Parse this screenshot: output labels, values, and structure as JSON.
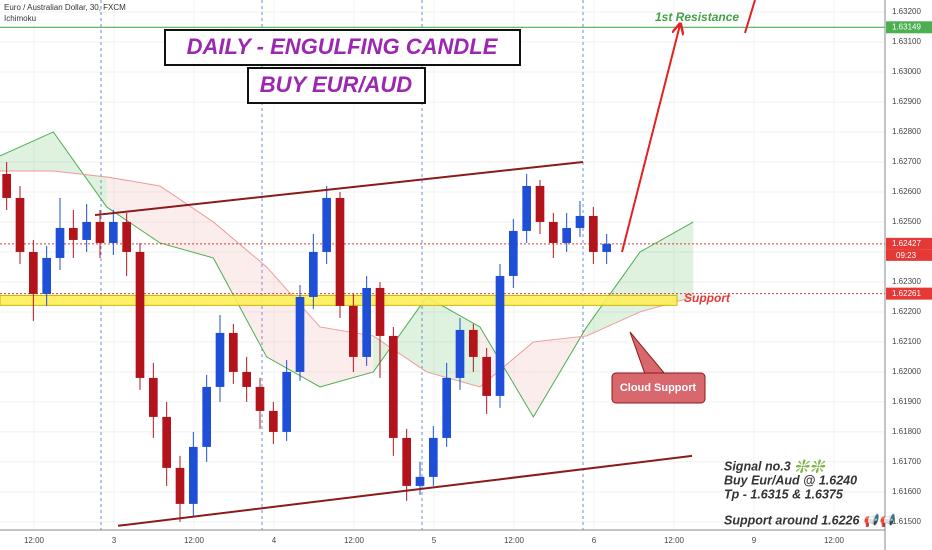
{
  "header": {
    "title": "Euro / Australian Dollar, 30, FXCM",
    "indicator": "Ichimoku"
  },
  "chart_data": {
    "type": "candlestick",
    "x": [
      1,
      3,
      5,
      7,
      9,
      11,
      13,
      15,
      17,
      19,
      21,
      23,
      25,
      27,
      29,
      31,
      33,
      35,
      37,
      39,
      41,
      43,
      45,
      47,
      49,
      51,
      53,
      55,
      57,
      59,
      61,
      63,
      65,
      67,
      69,
      71,
      73,
      75,
      77,
      79,
      81,
      83,
      85,
      87,
      89,
      91
    ],
    "open": [
      1.6266,
      1.6258,
      1.624,
      1.6226,
      1.6238,
      1.6248,
      1.6244,
      1.625,
      1.6243,
      1.625,
      1.624,
      1.6198,
      1.6185,
      1.6168,
      1.6156,
      1.6175,
      1.6195,
      1.6213,
      1.62,
      1.6195,
      1.6187,
      1.618,
      1.62,
      1.6225,
      1.624,
      1.6258,
      1.6222,
      1.6205,
      1.6228,
      1.6212,
      1.6178,
      1.6162,
      1.6165,
      1.6178,
      1.6198,
      1.6214,
      1.6205,
      1.6192,
      1.6232,
      1.6247,
      1.6262,
      1.625,
      1.6243,
      1.6248,
      1.6252,
      1.624
    ],
    "high": [
      1.627,
      1.6262,
      1.6244,
      1.6242,
      1.6258,
      1.6254,
      1.6256,
      1.6254,
      1.6254,
      1.6253,
      1.6243,
      1.6203,
      1.619,
      1.6172,
      1.618,
      1.6199,
      1.6219,
      1.6216,
      1.6205,
      1.6198,
      1.619,
      1.6204,
      1.6229,
      1.6246,
      1.6262,
      1.626,
      1.6226,
      1.6232,
      1.623,
      1.6215,
      1.6181,
      1.617,
      1.6182,
      1.6203,
      1.6218,
      1.6216,
      1.6208,
      1.6236,
      1.6251,
      1.6266,
      1.6264,
      1.6253,
      1.6253,
      1.6257,
      1.6255,
      1.6246
    ],
    "low": [
      1.6254,
      1.6236,
      1.6217,
      1.6222,
      1.6234,
      1.6238,
      1.624,
      1.6238,
      1.6239,
      1.6232,
      1.6194,
      1.6178,
      1.6162,
      1.615,
      1.6152,
      1.617,
      1.619,
      1.6196,
      1.619,
      1.6181,
      1.6176,
      1.6177,
      1.6197,
      1.6221,
      1.6236,
      1.6218,
      1.62,
      1.6202,
      1.6198,
      1.6172,
      1.6157,
      1.6159,
      1.6162,
      1.6175,
      1.6194,
      1.62,
      1.6186,
      1.6188,
      1.6228,
      1.6243,
      1.6246,
      1.6238,
      1.624,
      1.6245,
      1.6236,
      1.6236
    ],
    "close": [
      1.6258,
      1.624,
      1.6226,
      1.6238,
      1.6248,
      1.6244,
      1.625,
      1.6243,
      1.625,
      1.624,
      1.6198,
      1.6185,
      1.6168,
      1.6156,
      1.6175,
      1.6195,
      1.6213,
      1.62,
      1.6195,
      1.6187,
      1.618,
      1.62,
      1.6225,
      1.624,
      1.6258,
      1.6222,
      1.6205,
      1.6228,
      1.6212,
      1.6178,
      1.6162,
      1.6165,
      1.6178,
      1.6198,
      1.6214,
      1.6205,
      1.6192,
      1.6232,
      1.6247,
      1.6262,
      1.625,
      1.6243,
      1.6248,
      1.6252,
      1.624,
      1.62427
    ],
    "up_color": "#1f4fd6",
    "down_color": "#b3141c",
    "xlim": [
      0,
      132.75
    ],
    "xticks": [
      {
        "value": 5.1,
        "label": "12:00"
      },
      {
        "value": 17.1,
        "label": "3"
      },
      {
        "value": 29.1,
        "label": "12:00"
      },
      {
        "value": 41.1,
        "label": "4"
      },
      {
        "value": 53.1,
        "label": "12:00"
      },
      {
        "value": 65.1,
        "label": "5"
      },
      {
        "value": 77.1,
        "label": "12:00"
      },
      {
        "value": 89.1,
        "label": "6"
      },
      {
        "value": 101.1,
        "label": "12:00"
      },
      {
        "value": 113.1,
        "label": "9"
      },
      {
        "value": 125.1,
        "label": "12:00"
      }
    ],
    "ylim": [
      1.61473,
      1.6324
    ],
    "yticks": [
      {
        "value": 1.615,
        "label": "1.61500"
      },
      {
        "value": 1.616,
        "label": "1.61600"
      },
      {
        "value": 1.617,
        "label": "1.61700"
      },
      {
        "value": 1.618,
        "label": "1.61800"
      },
      {
        "value": 1.619,
        "label": "1.61900"
      },
      {
        "value": 1.62,
        "label": "1.62000"
      },
      {
        "value": 1.621,
        "label": "1.62100"
      },
      {
        "value": 1.622,
        "label": "1.62200"
      },
      {
        "value": 1.623,
        "label": "1.62300"
      },
      {
        "value": 1.624,
        "label": "1.62400"
      },
      {
        "value": 1.625,
        "label": "1.62500"
      },
      {
        "value": 1.626,
        "label": "1.62600"
      },
      {
        "value": 1.627,
        "label": "1.62700"
      },
      {
        "value": 1.628,
        "label": "1.62800"
      },
      {
        "value": 1.629,
        "label": "1.62900"
      },
      {
        "value": 1.63,
        "label": "1.63000"
      },
      {
        "value": 1.631,
        "label": "1.63100"
      },
      {
        "value": 1.632,
        "label": "1.63200"
      }
    ],
    "ichimoku": {
      "x": [
        0,
        8,
        16,
        24,
        32,
        40,
        48,
        56,
        64,
        72,
        80,
        88,
        96,
        104
      ],
      "span_a": [
        1.6272,
        1.628,
        1.6255,
        1.6243,
        1.6238,
        1.6205,
        1.6195,
        1.62,
        1.6225,
        1.6215,
        1.6185,
        1.6215,
        1.624,
        1.625
      ],
      "span_b": [
        1.6267,
        1.6267,
        1.6265,
        1.6262,
        1.625,
        1.6235,
        1.6215,
        1.6212,
        1.62,
        1.6195,
        1.621,
        1.6212,
        1.622,
        1.6225
      ],
      "color_a": "#4caf50",
      "color_b": "#ef9a9a"
    },
    "price_lines": [
      {
        "value": 1.63149,
        "color": "#4caf50"
      },
      {
        "value": 1.62427,
        "color": "#e53935",
        "countdown": "09:23"
      },
      {
        "value": 1.62261,
        "color": "#e53935"
      }
    ],
    "support_zone": {
      "x": [
        0,
        101.55
      ],
      "y": [
        1.62222,
        1.62255
      ],
      "color": "#ffee58"
    },
    "trendlines": [
      {
        "x": [
          14.25,
          87.45
        ],
        "y": [
          1.62523,
          1.627
        ],
        "color": "#8b1a1a"
      },
      {
        "x": [
          17.7,
          103.8
        ],
        "y": [
          1.61487,
          1.6172
        ],
        "color": "#8b1a1a"
      },
      {
        "x": [
          93.3,
          102
        ],
        "y": [
          1.624,
          1.63157
        ],
        "color": "#e52020",
        "arrow": true
      },
      {
        "x": [
          111.75,
          113.25
        ],
        "y": [
          1.6313,
          1.6324
        ],
        "color": "#e52020"
      }
    ]
  },
  "annotations": {
    "headline": "DAILY - ENGULFING CANDLE",
    "subheadline": "BUY EUR/AUD",
    "resistance": "1st Resistance",
    "support": "Support",
    "cloud_support": "Cloud Support",
    "notes": [
      "Signal no.3 ❇️❇️",
      "Buy Eur/Aud @ 1.6240",
      "Tp - 1.6315 & 1.6375",
      "Support around 1.6226 📢📢"
    ]
  }
}
